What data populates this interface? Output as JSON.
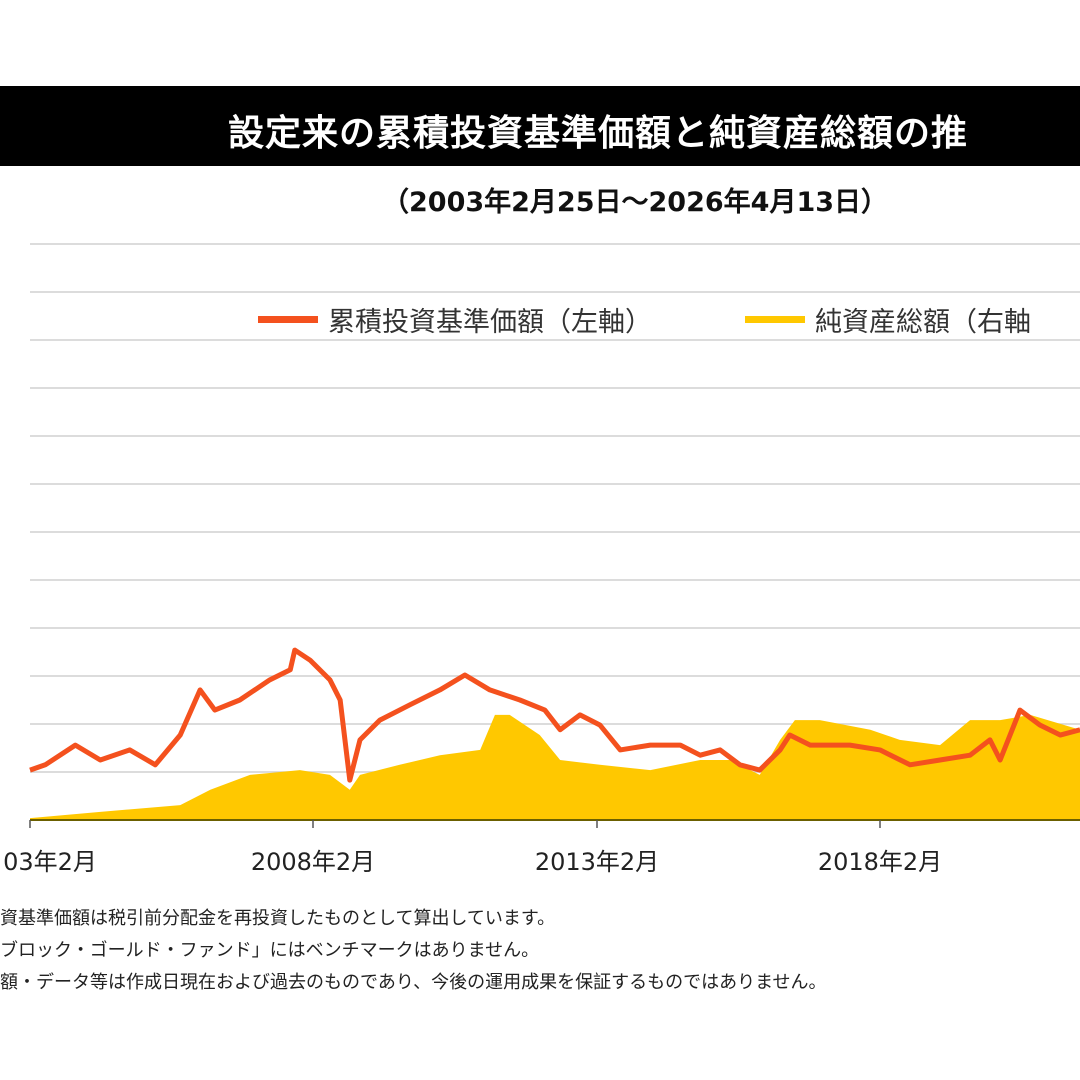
{
  "chart_data": {
    "type": "line",
    "title": "設定来の累積投資基準価額と純資産総額の推",
    "subtitle": "（2003年2月25日～2026年4月13日）",
    "xlabel": "",
    "ylabel": "",
    "x_tick_labels": [
      "03年2月",
      "2008年2月",
      "2013年2月",
      "2018年2月"
    ],
    "xlim": [
      2003.08,
      2021.6
    ],
    "ylim": [
      0,
      12
    ],
    "grid": true,
    "legend_position": "top-right",
    "series": [
      {
        "name": "累積投資基準価額（左軸）",
        "kind": "line",
        "color": "#F4511E",
        "x": [
          2003.08,
          2003.35,
          2003.88,
          2004.32,
          2004.84,
          2005.29,
          2005.73,
          2006.08,
          2006.34,
          2006.78,
          2007.31,
          2007.67,
          2007.75,
          2008.02,
          2008.37,
          2008.55,
          2008.72,
          2008.9,
          2009.25,
          2009.78,
          2010.31,
          2010.75,
          2011.19,
          2011.72,
          2012.16,
          2012.43,
          2012.78,
          2013.13,
          2013.49,
          2014.02,
          2014.55,
          2014.9,
          2015.25,
          2015.6,
          2015.95,
          2016.31,
          2016.48,
          2016.84,
          2017.54,
          2018.07,
          2018.6,
          2019.13,
          2019.66,
          2020.01,
          2020.19,
          2020.54,
          2020.89,
          2021.25,
          2021.6
        ],
        "y": [
          1.04,
          1.15,
          1.56,
          1.25,
          1.46,
          1.15,
          1.77,
          2.71,
          2.29,
          2.5,
          2.92,
          3.13,
          3.54,
          3.33,
          2.92,
          2.5,
          0.83,
          1.67,
          2.08,
          2.4,
          2.71,
          3.02,
          2.71,
          2.5,
          2.29,
          1.88,
          2.19,
          1.98,
          1.46,
          1.56,
          1.56,
          1.35,
          1.46,
          1.15,
          1.04,
          1.46,
          1.77,
          1.56,
          1.56,
          1.46,
          1.15,
          1.25,
          1.35,
          1.67,
          1.25,
          2.29,
          1.98,
          1.77,
          1.88
        ]
      },
      {
        "name": "純資産総額（右軸）",
        "kind": "area",
        "color": "#FFC800",
        "x": [
          2003.08,
          2004.32,
          2005.73,
          2006.26,
          2006.96,
          2007.84,
          2008.37,
          2008.72,
          2008.9,
          2009.6,
          2010.31,
          2011.02,
          2011.28,
          2011.54,
          2012.07,
          2012.43,
          2013.13,
          2014.02,
          2014.9,
          2015.43,
          2015.95,
          2016.31,
          2016.57,
          2017.01,
          2017.9,
          2018.42,
          2019.13,
          2019.66,
          2020.19,
          2020.72,
          2021.6
        ],
        "y": [
          0.04,
          0.17,
          0.31,
          0.63,
          0.94,
          1.04,
          0.94,
          0.63,
          0.94,
          1.15,
          1.35,
          1.46,
          2.19,
          2.19,
          1.77,
          1.25,
          1.15,
          1.04,
          1.25,
          1.25,
          0.94,
          1.67,
          2.08,
          2.08,
          1.88,
          1.67,
          1.56,
          2.08,
          2.08,
          2.19,
          1.88
        ]
      }
    ]
  },
  "legend": {
    "nav_label": "累積投資基準価額（左軸）",
    "aum_label": "純資産総額（右軸"
  },
  "notes": [
    "資基準価額は税引前分配金を再投資したものとして算出しています。",
    "ブロック・ゴールド・ファンド」にはベンチマークはありません。",
    "額・データ等は作成日現在および過去のものであり、今後の運用成果を保証するものではありません。"
  ]
}
